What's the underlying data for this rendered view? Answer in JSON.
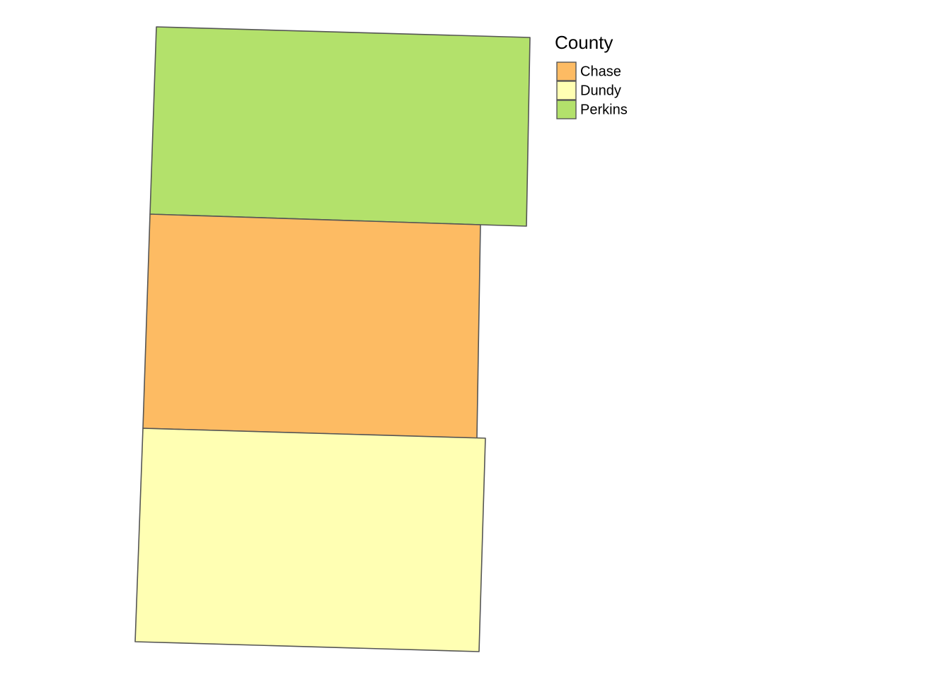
{
  "legend": {
    "title": "County",
    "items": [
      {
        "name": "Chase",
        "color": "#fdbb63"
      },
      {
        "name": "Dundy",
        "color": "#ffffb3"
      },
      {
        "name": "Perkins",
        "color": "#b3e16b"
      }
    ]
  }
}
